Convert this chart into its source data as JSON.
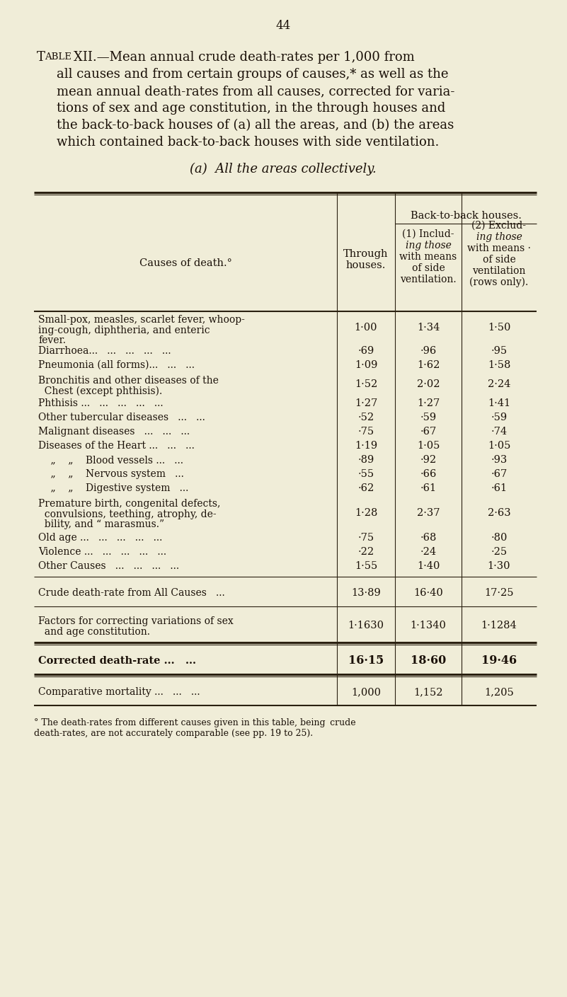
{
  "page_number": "44",
  "bg_color": "#f0edd8",
  "text_color": "#1a1008",
  "line_color": "#2a2010",
  "title_line1_T": "T",
  "title_line1_ABLE": "ABLE",
  "title_line1_rest": "XII.—Mean annual crude death-rates per 1,000 from",
  "title_lines_indent": [
    "all causes and from certain groups of causes,* as well as the",
    "mean annual death-rates from all causes, corrected for varia-",
    "tions of sex and age constitution, in the through houses and",
    "the back-to-back houses of (a) all the areas, and (b) the areas",
    "which contained back-to-back houses with side ventilation."
  ],
  "subtitle": "(a)  All the areas collectively.",
  "group_header": "Back-to-back houses.",
  "col0_header": "Causes of death.°",
  "col1_header": "Through\nhouses.",
  "col2_header_line1": "(1)  Includ-",
  "col2_header_line2": "ing those",
  "col2_header_line3": "with means",
  "col2_header_line4": "of side",
  "col2_header_line5": "ventilation.",
  "col3_header_line1": "(2)  Exclud-",
  "col3_header_line2": "ing those",
  "col3_header_line3": "with means ·",
  "col3_header_line4": "of side",
  "col3_header_line5": "ventilation",
  "col3_header_line6": "(rows only).",
  "rows": [
    {
      "cause1": "Small-pox, measles, scarlet fever, whoop-",
      "cause2": "ing-cough, diphtheria, and enteric",
      "cause3": "fever.",
      "v1": "1·00",
      "v2": "1·34",
      "v3": "1·50"
    },
    {
      "cause1": "Diarrhoea...   ...   ...   ...   ...",
      "v1": "·69",
      "v2": "·96",
      "v3": "·95"
    },
    {
      "cause1": "Pneumonia (all forms)...   ...   ...",
      "v1": "1·09",
      "v2": "1·62",
      "v3": "1·58"
    },
    {
      "cause1": "Bronchitis and other diseases of the",
      "cause2": "  Chest (except phthisis).",
      "v1": "1·52",
      "v2": "2·02",
      "v3": "2·24"
    },
    {
      "cause1": "Phthisis ...   ...   ...   ...   ...",
      "v1": "1·27",
      "v2": "1·27",
      "v3": "1·41"
    },
    {
      "cause1": "Other tubercular diseases   ...   ...",
      "v1": "·52",
      "v2": "·59",
      "v3": "·59"
    },
    {
      "cause1": "Malignant diseases   ...   ...   ...",
      "v1": "·75",
      "v2": "·67",
      "v3": "·74"
    },
    {
      "cause1": "Diseases of the Heart ...   ...   ...",
      "v1": "1·19",
      "v2": "1·05",
      "v3": "1·05"
    },
    {
      "cause1": "    „    „    Blood vessels ...   ...",
      "v1": "·89",
      "v2": "·92",
      "v3": "·93"
    },
    {
      "cause1": "    „    „    Nervous system   ...",
      "v1": "·55",
      "v2": "·66",
      "v3": "·67"
    },
    {
      "cause1": "    „    „    Digestive system   ...",
      "v1": "·62",
      "v2": "·61",
      "v3": "·61"
    },
    {
      "cause1": "Premature birth, congenital defects,",
      "cause2": "  convulsions, teething, atrophy, de-",
      "cause3": "  bility, and “ marasmus.”",
      "v1": "1·28",
      "v2": "2·37",
      "v3": "2·63"
    },
    {
      "cause1": "Old age ...   ...   ...   ...   ...",
      "v1": "·75",
      "v2": "·68",
      "v3": "·80"
    },
    {
      "cause1": "Violence ...   ...   ...   ...   ...",
      "v1": "·22",
      "v2": "·24",
      "v3": "·25"
    },
    {
      "cause1": "Other Causes   ...   ...   ...   ...",
      "v1": "1·55",
      "v2": "1·40",
      "v3": "1·30"
    }
  ],
  "crude_row": {
    "cause": "Crude death-rate from All Causes   ...",
    "v1": "13·89",
    "v2": "16·40",
    "v3": "17·25"
  },
  "factors_row": {
    "cause1": "Factors for correcting variations of sex",
    "cause2": "  and age constitution.",
    "v1": "1·1630",
    "v2": "1·1340",
    "v3": "1·1284"
  },
  "corrected_row": {
    "cause": "Corrected death-rate ...   ...",
    "v1": "16·15",
    "v2": "18·60",
    "v3": "19·46"
  },
  "comparative_row": {
    "cause": "Comparative mortality ...   ...   ...",
    "v1": "1,000",
    "v2": "1,152",
    "v3": "1,205"
  },
  "footnote_line1": "° The death-rates from different causes given in this table, being ",
  "footnote_italic": "crude",
  "footnote_line2": "death-rates, are not accurately comparable (",
  "footnote_italic2": "see",
  "footnote_line2b": " pp. 19 to 25)."
}
